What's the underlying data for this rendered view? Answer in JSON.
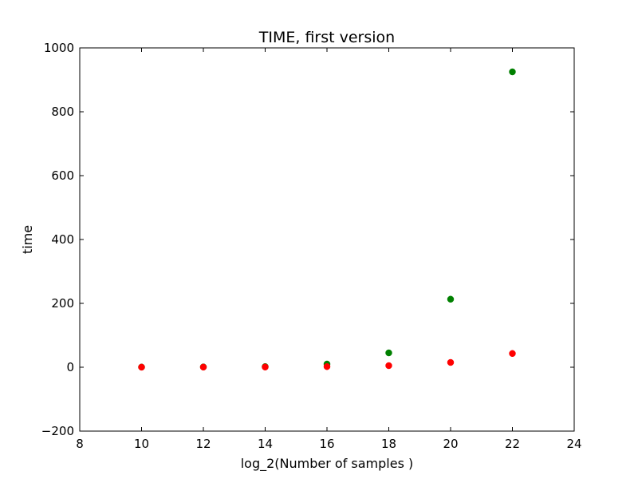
{
  "chart_data": {
    "type": "scatter",
    "title": "TIME, first version",
    "xlabel": "log_2(Number of samples )",
    "ylabel": "time",
    "xlim": [
      8,
      24
    ],
    "ylim": [
      -200,
      1000
    ],
    "x_ticks": [
      8,
      10,
      12,
      14,
      16,
      18,
      20,
      22,
      24
    ],
    "y_ticks": [
      -200,
      0,
      200,
      400,
      600,
      800,
      1000
    ],
    "x_tick_labels": [
      "8",
      "10",
      "12",
      "14",
      "16",
      "18",
      "20",
      "22",
      "24"
    ],
    "y_tick_labels": [
      "−200",
      "0",
      "200",
      "400",
      "600",
      "800",
      "1000"
    ],
    "grid": false,
    "legend": "none",
    "series": [
      {
        "color": "#008000",
        "x": [
          10,
          12,
          14,
          16,
          18,
          20,
          22
        ],
        "y": [
          0.5,
          1,
          2,
          10,
          45,
          213,
          925
        ]
      },
      {
        "color": "#ff0000",
        "x": [
          10,
          12,
          14,
          16,
          18,
          20,
          22
        ],
        "y": [
          0.2,
          0.4,
          0.6,
          2,
          5,
          15,
          43
        ]
      }
    ]
  }
}
